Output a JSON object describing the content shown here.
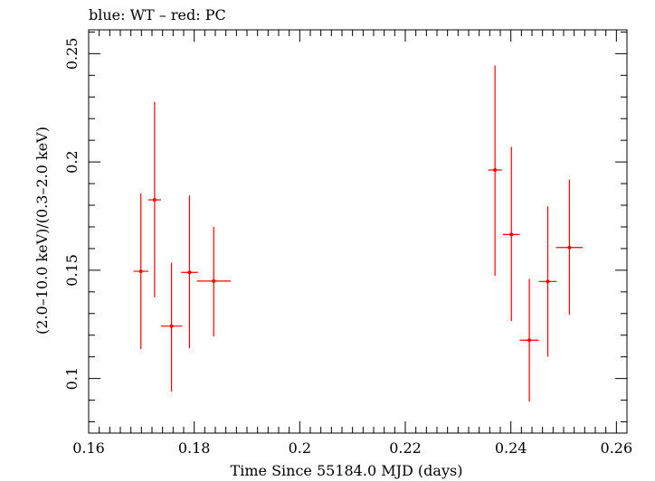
{
  "chart_data": {
    "type": "scatter",
    "title": "blue: WT – red: PC",
    "xlabel": "Time Since 55184.0 MJD (days)",
    "ylabel": "(2.0–10.0 keV)/(0.3–2.0 keV)",
    "xlim": [
      0.16,
      0.262
    ],
    "ylim": [
      0.0748,
      0.261
    ],
    "x_ticks": [
      0.16,
      0.18,
      0.2,
      0.22,
      0.24,
      0.26
    ],
    "x_tick_labels": [
      "0.16",
      "0.18",
      "0.2",
      "0.22",
      "0.24",
      "0.26"
    ],
    "y_ticks": [
      0.1,
      0.15,
      0.2,
      0.25
    ],
    "y_tick_labels": [
      "0.1",
      "0.15",
      "0.2",
      "0.25"
    ],
    "grid": false,
    "series": [
      {
        "color": "#ff0000",
        "points": [
          {
            "x": 0.1699,
            "xerr": 0.0014,
            "y": 0.1495,
            "ylo": 0.1135,
            "yhi": 0.1855
          },
          {
            "x": 0.1725,
            "xerr": 0.0012,
            "y": 0.1825,
            "ylo": 0.1375,
            "yhi": 0.2277
          },
          {
            "x": 0.1757,
            "xerr": 0.002,
            "y": 0.1242,
            "ylo": 0.094,
            "yhi": 0.1535
          },
          {
            "x": 0.1791,
            "xerr": 0.0016,
            "y": 0.149,
            "ylo": 0.114,
            "yhi": 0.1845
          },
          {
            "x": 0.1837,
            "xerr": 0.0032,
            "y": 0.145,
            "ylo": 0.1195,
            "yhi": 0.17
          },
          {
            "x": 0.237,
            "xerr": 0.0013,
            "y": 0.1963,
            "ylo": 0.1475,
            "yhi": 0.2445
          },
          {
            "x": 0.2401,
            "xerr": 0.0016,
            "y": 0.1665,
            "ylo": 0.1265,
            "yhi": 0.207
          },
          {
            "x": 0.2435,
            "xerr": 0.0018,
            "y": 0.1177,
            "ylo": 0.0893,
            "yhi": 0.146
          },
          {
            "x": 0.247,
            "xerr": 0.0017,
            "y": 0.1448,
            "ylo": 0.11,
            "yhi": 0.1795
          },
          {
            "x": 0.2511,
            "xerr": 0.0025,
            "y": 0.1605,
            "ylo": 0.1295,
            "yhi": 0.1918
          }
        ]
      }
    ]
  }
}
